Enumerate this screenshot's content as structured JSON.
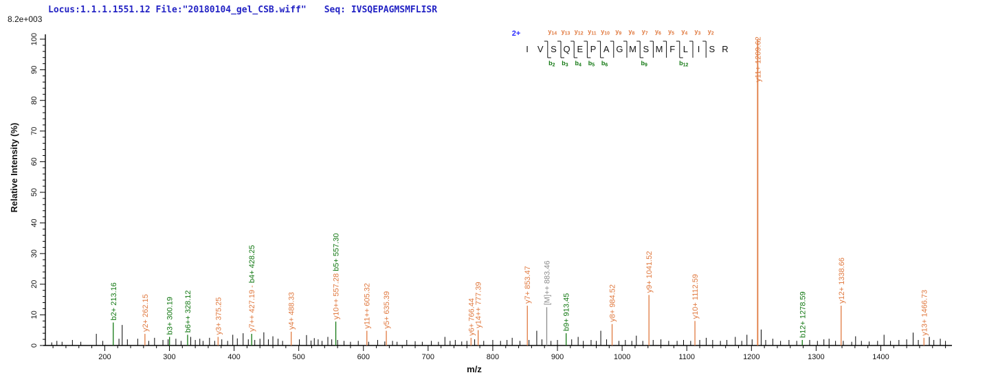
{
  "header": {
    "locus_file": "Locus:1.1.1.1551.12 File:\"20180104_gel_CSB.wiff\"",
    "seq_label": "Seq: IVSQEPAGMSMFLISR",
    "max_intensity": "8.2e+003"
  },
  "ladder": {
    "charge": "2+",
    "residues": [
      "I",
      "V",
      "S",
      "Q",
      "E",
      "P",
      "A",
      "G",
      "M",
      "S",
      "M",
      "F",
      "L",
      "I",
      "S",
      "R"
    ],
    "cleavages": [
      {
        "after": 1,
        "y": "y14",
        "b": "b2"
      },
      {
        "after": 2,
        "y": "y13",
        "b": "b3"
      },
      {
        "after": 3,
        "y": "y12",
        "b": "b4"
      },
      {
        "after": 4,
        "y": "y11",
        "b": "b5"
      },
      {
        "after": 5,
        "y": "y10",
        "b": "b6"
      },
      {
        "after": 6,
        "y": "y9",
        "b": null
      },
      {
        "after": 7,
        "y": "y8",
        "b": null
      },
      {
        "after": 8,
        "y": "y7",
        "b": "b9"
      },
      {
        "after": 9,
        "y": "y6",
        "b": null
      },
      {
        "after": 10,
        "y": "y5",
        "b": null
      },
      {
        "after": 11,
        "y": "y4",
        "b": "b12"
      },
      {
        "after": 12,
        "y": "y3",
        "b": null
      },
      {
        "after": 13,
        "y": "y2",
        "b": null
      }
    ]
  },
  "colors": {
    "y": "#E0793F",
    "b": "#117711",
    "M": "#8C8C8C",
    "noise": "#000000",
    "axis": "#000000",
    "header_blue": "#2323c4",
    "charge_blue": "#2a2aff"
  },
  "chart_data": {
    "type": "bar",
    "subtype": "ms2-stick-spectrum",
    "title": "",
    "xlabel": "m/z",
    "ylabel": "Relative  Intensity (%)",
    "xlim": [
      105,
      1510
    ],
    "ylim": [
      0,
      100
    ],
    "x_major_tick_step": 100,
    "x_minor_tick_step": 20,
    "x_label_range": [
      200,
      1400
    ],
    "y_major_tick_step": 10,
    "y_minor_tick_step": 2,
    "grid": false,
    "annotated_peaks": [
      {
        "mz": 213.16,
        "intensity": 7.5,
        "color": "b",
        "parts": [
          {
            "t": "b2+ 213.16",
            "c": "b"
          }
        ]
      },
      {
        "mz": 262.15,
        "intensity": 3.8,
        "color": "y",
        "parts": [
          {
            "t": "y2+ 262.15",
            "c": "y"
          }
        ]
      },
      {
        "mz": 300.19,
        "intensity": 2.8,
        "color": "b",
        "parts": [
          {
            "t": "b3+ 300.19",
            "c": "b"
          }
        ]
      },
      {
        "mz": 328.12,
        "intensity": 3.5,
        "color": "b",
        "parts": [
          {
            "t": "b6++ 328.12",
            "c": "b"
          }
        ]
      },
      {
        "mz": 375.25,
        "intensity": 2.8,
        "color": "y",
        "parts": [
          {
            "t": "y3+ 375.25",
            "c": "y"
          }
        ]
      },
      {
        "mz": 427.19,
        "intensity": 3.8,
        "color": "b",
        "parts": [
          {
            "t": "y7++ 427.19 - ",
            "c": "y"
          },
          {
            "t": "b4+ 428.25",
            "c": "b"
          }
        ]
      },
      {
        "mz": 488.33,
        "intensity": 4.5,
        "color": "y",
        "parts": [
          {
            "t": "y4+ 488.33",
            "c": "y"
          }
        ]
      },
      {
        "mz": 557.28,
        "intensity": 7.8,
        "color": "b",
        "parts": [
          {
            "t": "y10++ 557.28 ",
            "c": "y"
          },
          {
            "t": "b5+ 557.30",
            "c": "b"
          }
        ]
      },
      {
        "mz": 605.32,
        "intensity": 4.8,
        "color": "y",
        "parts": [
          {
            "t": "y11++ 605.32",
            "c": "y"
          }
        ]
      },
      {
        "mz": 635.39,
        "intensity": 4.8,
        "color": "y",
        "parts": [
          {
            "t": "y5+ 635.39",
            "c": "y"
          }
        ]
      },
      {
        "mz": 766.44,
        "intensity": 2.5,
        "color": "y",
        "parts": [
          {
            "t": "y6+ 766.44",
            "c": "y"
          }
        ]
      },
      {
        "mz": 777.39,
        "intensity": 5.0,
        "color": "y",
        "parts": [
          {
            "t": "y14++ 777.39",
            "c": "y"
          }
        ]
      },
      {
        "mz": 853.47,
        "intensity": 13.0,
        "color": "y",
        "parts": [
          {
            "t": "y7+ 853.47",
            "c": "y"
          }
        ]
      },
      {
        "mz": 883.46,
        "intensity": 12.5,
        "color": "M",
        "parts": [
          {
            "t": "[M]++ 883.46",
            "c": "M"
          }
        ]
      },
      {
        "mz": 913.45,
        "intensity": 4.0,
        "color": "b",
        "parts": [
          {
            "t": "b9+ 913.45",
            "c": "b"
          }
        ]
      },
      {
        "mz": 984.52,
        "intensity": 7.0,
        "color": "y",
        "parts": [
          {
            "t": "y8+ 984.52",
            "c": "y"
          }
        ]
      },
      {
        "mz": 1041.52,
        "intensity": 16.5,
        "color": "y",
        "parts": [
          {
            "t": "y9+ 1041.52",
            "c": "y"
          }
        ]
      },
      {
        "mz": 1112.59,
        "intensity": 8.0,
        "color": "y",
        "parts": [
          {
            "t": "y10+ 1112.59",
            "c": "y"
          }
        ]
      },
      {
        "mz": 1209.62,
        "intensity": 100,
        "color": "y",
        "width": 1.8,
        "label_start_pct": 86,
        "parts": [
          {
            "t": "y11+ 1209.62",
            "c": "y"
          }
        ]
      },
      {
        "mz": 1278.59,
        "intensity": 1.8,
        "color": "b",
        "parts": [
          {
            "t": "b12+ 1278.59",
            "c": "b"
          }
        ]
      },
      {
        "mz": 1338.66,
        "intensity": 13.0,
        "color": "y",
        "parts": [
          {
            "t": "y12+ 1338.66",
            "c": "y"
          }
        ]
      },
      {
        "mz": 1466.73,
        "intensity": 2.5,
        "color": "y",
        "parts": [
          {
            "t": "y13+ 1466.73",
            "c": "y"
          }
        ]
      }
    ],
    "noise_peaks": [
      [
        118,
        1.0
      ],
      [
        126,
        1.5
      ],
      [
        134,
        1.2
      ],
      [
        150,
        1.8
      ],
      [
        163,
        1.2
      ],
      [
        187,
        3.8
      ],
      [
        197,
        1.5
      ],
      [
        222,
        2.2
      ],
      [
        227,
        6.7
      ],
      [
        235,
        2.0
      ],
      [
        251,
        2.2
      ],
      [
        268,
        1.5
      ],
      [
        277,
        2.5
      ],
      [
        290,
        1.8
      ],
      [
        298,
        2.0
      ],
      [
        310,
        2.2
      ],
      [
        318,
        1.5
      ],
      [
        333,
        2.8
      ],
      [
        340,
        1.8
      ],
      [
        347,
        2.2
      ],
      [
        352,
        1.5
      ],
      [
        362,
        2.5
      ],
      [
        370,
        1.5
      ],
      [
        381,
        2.0
      ],
      [
        390,
        1.5
      ],
      [
        398,
        3.5
      ],
      [
        405,
        2.3
      ],
      [
        414,
        4.0
      ],
      [
        422,
        2.0
      ],
      [
        432,
        1.8
      ],
      [
        440,
        2.2
      ],
      [
        446,
        4.3
      ],
      [
        453,
        2.0
      ],
      [
        460,
        3.0
      ],
      [
        468,
        2.2
      ],
      [
        475,
        1.5
      ],
      [
        501,
        2.0
      ],
      [
        512,
        3.4
      ],
      [
        519,
        1.6
      ],
      [
        524,
        2.4
      ],
      [
        530,
        2.0
      ],
      [
        536,
        1.5
      ],
      [
        545,
        2.8
      ],
      [
        551,
        2.0
      ],
      [
        560,
        1.8
      ],
      [
        570,
        1.5
      ],
      [
        580,
        1.2
      ],
      [
        592,
        1.5
      ],
      [
        608,
        1.2
      ],
      [
        622,
        1.8
      ],
      [
        633,
        1.3
      ],
      [
        645,
        1.5
      ],
      [
        652,
        1.2
      ],
      [
        667,
        1.8
      ],
      [
        680,
        1.4
      ],
      [
        691,
        1.2
      ],
      [
        705,
        1.5
      ],
      [
        716,
        1.2
      ],
      [
        726,
        2.8
      ],
      [
        734,
        1.5
      ],
      [
        742,
        1.8
      ],
      [
        752,
        1.3
      ],
      [
        760,
        1.5
      ],
      [
        772,
        2.0
      ],
      [
        786,
        1.5
      ],
      [
        800,
        1.8
      ],
      [
        812,
        1.5
      ],
      [
        822,
        1.8
      ],
      [
        830,
        2.5
      ],
      [
        842,
        1.5
      ],
      [
        856,
        1.8
      ],
      [
        868,
        4.8
      ],
      [
        876,
        2.0
      ],
      [
        890,
        1.5
      ],
      [
        900,
        1.8
      ],
      [
        922,
        2.0
      ],
      [
        932,
        2.8
      ],
      [
        940,
        1.5
      ],
      [
        952,
        1.8
      ],
      [
        960,
        1.5
      ],
      [
        967,
        4.8
      ],
      [
        976,
        2.0
      ],
      [
        995,
        1.5
      ],
      [
        1005,
        1.8
      ],
      [
        1015,
        1.5
      ],
      [
        1022,
        3.2
      ],
      [
        1032,
        1.5
      ],
      [
        1048,
        1.8
      ],
      [
        1060,
        2.0
      ],
      [
        1072,
        1.5
      ],
      [
        1085,
        1.5
      ],
      [
        1095,
        1.8
      ],
      [
        1106,
        1.5
      ],
      [
        1120,
        1.8
      ],
      [
        1130,
        2.5
      ],
      [
        1140,
        1.8
      ],
      [
        1152,
        1.5
      ],
      [
        1162,
        1.8
      ],
      [
        1175,
        2.8
      ],
      [
        1185,
        1.5
      ],
      [
        1193,
        3.5
      ],
      [
        1201,
        2.0
      ],
      [
        1215,
        5.2
      ],
      [
        1222,
        1.8
      ],
      [
        1233,
        2.2
      ],
      [
        1245,
        1.5
      ],
      [
        1258,
        1.8
      ],
      [
        1270,
        1.5
      ],
      [
        1290,
        1.8
      ],
      [
        1302,
        1.5
      ],
      [
        1312,
        2.0
      ],
      [
        1320,
        2.2
      ],
      [
        1330,
        1.5
      ],
      [
        1342,
        1.5
      ],
      [
        1355,
        1.2
      ],
      [
        1361,
        3.0
      ],
      [
        1370,
        1.5
      ],
      [
        1382,
        1.3
      ],
      [
        1395,
        1.5
      ],
      [
        1405,
        3.5
      ],
      [
        1415,
        1.5
      ],
      [
        1428,
        1.8
      ],
      [
        1440,
        2.0
      ],
      [
        1450,
        4.2
      ],
      [
        1458,
        1.8
      ],
      [
        1475,
        2.8
      ],
      [
        1482,
        1.8
      ],
      [
        1492,
        2.2
      ],
      [
        1500,
        1.5
      ]
    ]
  }
}
